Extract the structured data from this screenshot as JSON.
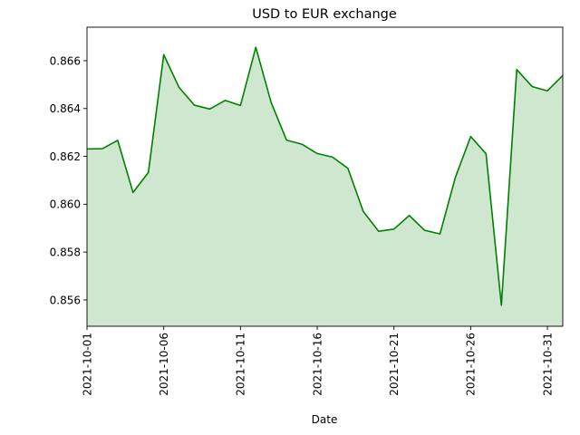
{
  "chart_data": {
    "type": "area",
    "title": "USD to EUR exchange",
    "xlabel": "Date",
    "ylabel": "",
    "x": [
      "2021-10-01",
      "2021-10-02",
      "2021-10-03",
      "2021-10-04",
      "2021-10-05",
      "2021-10-06",
      "2021-10-07",
      "2021-10-08",
      "2021-10-09",
      "2021-10-10",
      "2021-10-11",
      "2021-10-12",
      "2021-10-13",
      "2021-10-14",
      "2021-10-15",
      "2021-10-16",
      "2021-10-17",
      "2021-10-18",
      "2021-10-19",
      "2021-10-20",
      "2021-10-21",
      "2021-10-22",
      "2021-10-23",
      "2021-10-24",
      "2021-10-25",
      "2021-10-26",
      "2021-10-27",
      "2021-10-28",
      "2021-10-29",
      "2021-10-30",
      "2021-10-31",
      "2021-11-01"
    ],
    "values": [
      0.86231,
      0.86232,
      0.86267,
      0.86049,
      0.86133,
      0.86625,
      0.86488,
      0.86414,
      0.86398,
      0.86434,
      0.86413,
      0.86656,
      0.86425,
      0.86268,
      0.86251,
      0.86212,
      0.86197,
      0.8615,
      0.8597,
      0.85887,
      0.85896,
      0.85953,
      0.85891,
      0.85876,
      0.86112,
      0.86283,
      0.86211,
      0.85578,
      0.86563,
      0.86492,
      0.86474,
      0.86538
    ],
    "x_ticks": [
      "2021-10-01",
      "2021-10-06",
      "2021-10-11",
      "2021-10-16",
      "2021-10-21",
      "2021-10-26",
      "2021-10-31"
    ],
    "y_ticks": [
      "0.856",
      "0.858",
      "0.860",
      "0.862",
      "0.864",
      "0.866"
    ],
    "ylim": [
      0.8549,
      0.8674
    ],
    "xlim": [
      "2021-10-01",
      "2021-11-01"
    ],
    "grid": false,
    "line_color": "#008000",
    "fill_color": "#cfe6cf"
  }
}
